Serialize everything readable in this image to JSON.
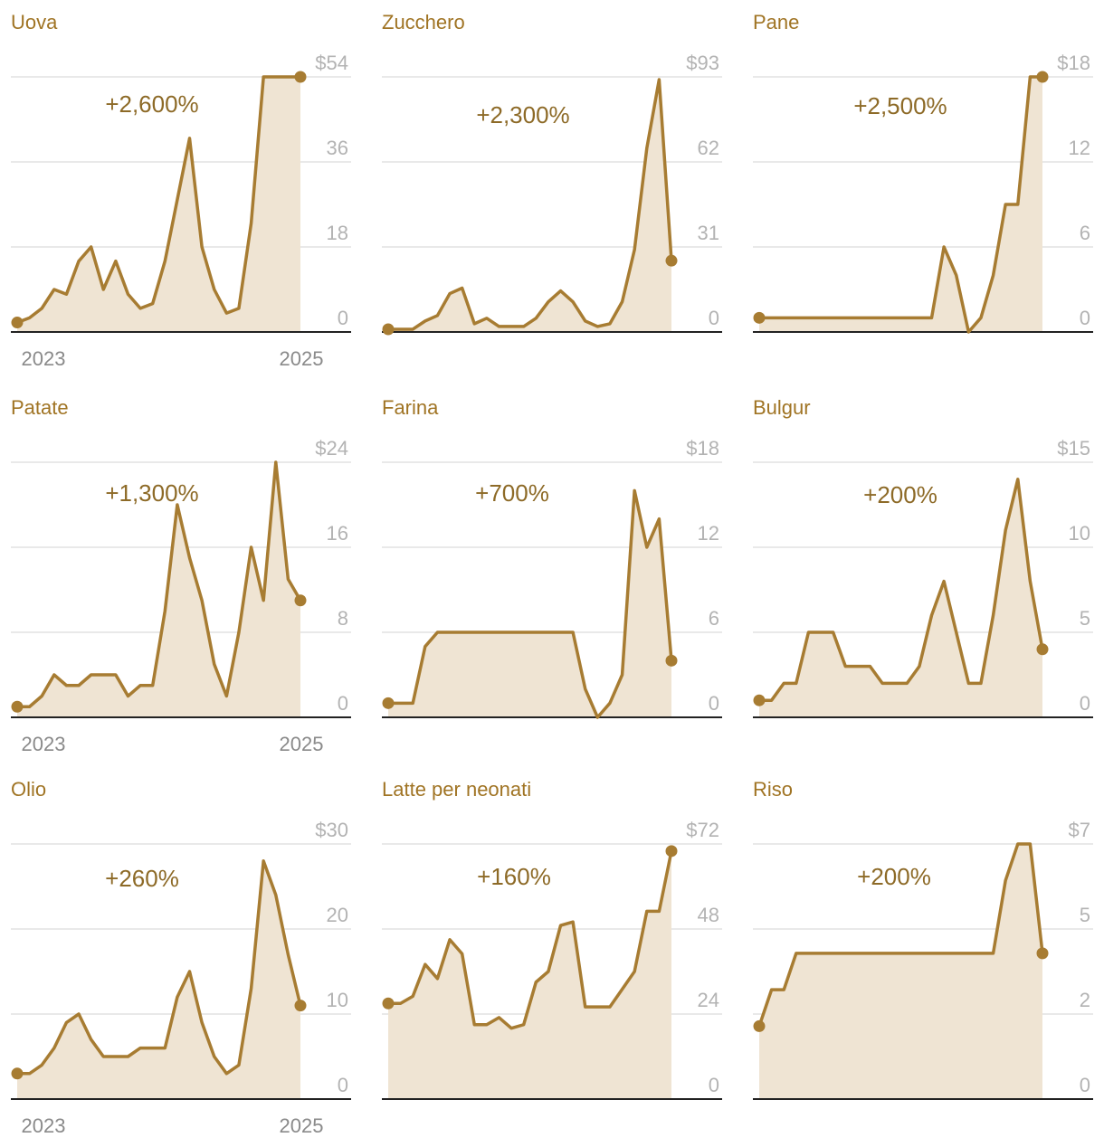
{
  "colors": {
    "line": "#a77c32",
    "fill": "#efe4d3",
    "title": "#a07424",
    "change": "#8d6a27",
    "grid": "#e2e2e2",
    "baseline": "#222222",
    "ytick": "#b3b3b3",
    "xtick": "#8a8a8a"
  },
  "chart_data": [
    {
      "type": "area",
      "title": "Uova",
      "change": "+2,600%",
      "ylim": [
        0,
        54
      ],
      "yticks": [
        "0",
        "18",
        "36",
        "$54"
      ],
      "xticks": [
        "2023",
        "2025"
      ],
      "values": [
        2,
        3,
        5,
        9,
        8,
        15,
        18,
        9,
        15,
        8,
        5,
        6,
        15,
        28,
        41,
        18,
        9,
        4,
        5,
        23,
        54,
        54,
        54,
        54
      ]
    },
    {
      "type": "area",
      "title": "Zucchero",
      "change": "+2,300%",
      "ylim": [
        0,
        93
      ],
      "yticks": [
        "0",
        "31",
        "62",
        "$93"
      ],
      "xticks": [],
      "values": [
        1,
        1,
        1,
        4,
        6,
        14,
        16,
        3,
        5,
        2,
        2,
        2,
        5,
        11,
        15,
        11,
        4,
        2,
        3,
        11,
        30,
        67,
        92,
        26
      ]
    },
    {
      "type": "area",
      "title": "Pane",
      "change": "+2,500%",
      "ylim": [
        0,
        18
      ],
      "yticks": [
        "0",
        "6",
        "12",
        "$18"
      ],
      "xticks": [],
      "values": [
        1,
        1,
        1,
        1,
        1,
        1,
        1,
        1,
        1,
        1,
        1,
        1,
        1,
        1,
        1,
        6,
        4,
        0,
        1,
        4,
        9,
        9,
        18,
        18
      ]
    },
    {
      "type": "area",
      "title": "Patate",
      "change": "+1,300%",
      "ylim": [
        0,
        24
      ],
      "yticks": [
        "0",
        "8",
        "16",
        "$24"
      ],
      "xticks": [
        "2023",
        "2025"
      ],
      "values": [
        1,
        1,
        2,
        4,
        3,
        3,
        4,
        4,
        4,
        2,
        3,
        3,
        10,
        20,
        15,
        11,
        5,
        2,
        8,
        16,
        11,
        24,
        13,
        11
      ]
    },
    {
      "type": "area",
      "title": "Farina",
      "change": "+700%",
      "ylim": [
        0,
        18
      ],
      "yticks": [
        "0",
        "6",
        "12",
        "$18"
      ],
      "xticks": [],
      "values": [
        1,
        1,
        1,
        5,
        6,
        6,
        6,
        6,
        6,
        6,
        6,
        6,
        6,
        6,
        6,
        6,
        2,
        0,
        1,
        3,
        16,
        12,
        14,
        4
      ]
    },
    {
      "type": "area",
      "title": "Bulgur",
      "change": "+200%",
      "ylim": [
        0,
        15
      ],
      "yticks": [
        "0",
        "5",
        "10",
        "$15"
      ],
      "xticks": [],
      "values": [
        1,
        1,
        2,
        2,
        5,
        5,
        5,
        3,
        3,
        3,
        2,
        2,
        2,
        3,
        6,
        8,
        5,
        2,
        2,
        6,
        11,
        14,
        8,
        4
      ]
    },
    {
      "type": "area",
      "title": "Olio",
      "change": "+260%",
      "ylim": [
        0,
        30
      ],
      "yticks": [
        "0",
        "10",
        "20",
        "$30"
      ],
      "xticks": [
        "2023",
        "2025"
      ],
      "values": [
        3,
        3,
        4,
        6,
        9,
        10,
        7,
        5,
        5,
        5,
        6,
        6,
        6,
        12,
        15,
        9,
        5,
        3,
        4,
        13,
        28,
        24,
        17,
        11
      ]
    },
    {
      "type": "area",
      "title": "Latte per neonati",
      "change": "+160%",
      "ylim": [
        0,
        72
      ],
      "yticks": [
        "0",
        "24",
        "48",
        "$72"
      ],
      "xticks": [],
      "values": [
        27,
        27,
        29,
        38,
        34,
        45,
        41,
        21,
        21,
        23,
        20,
        21,
        33,
        36,
        49,
        50,
        26,
        26,
        26,
        31,
        36,
        53,
        53,
        70
      ]
    },
    {
      "type": "area",
      "title": "Riso",
      "change": "+200%",
      "ylim": [
        0,
        7
      ],
      "yticks": [
        "0",
        "2",
        "5",
        "$7"
      ],
      "xticks": [],
      "values": [
        2,
        3,
        3,
        4,
        4,
        4,
        4,
        4,
        4,
        4,
        4,
        4,
        4,
        4,
        4,
        4,
        4,
        4,
        4,
        4,
        6,
        7,
        7,
        4
      ]
    }
  ]
}
